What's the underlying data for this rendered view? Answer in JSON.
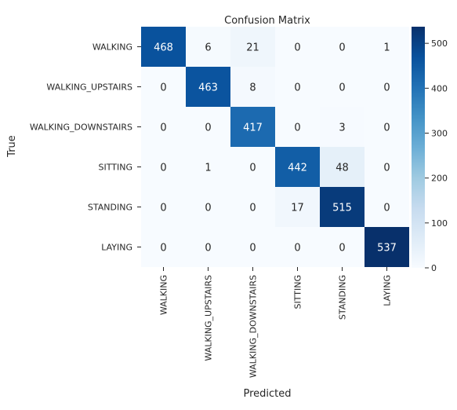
{
  "chart_data": {
    "type": "heatmap",
    "title": "Confusion Matrix",
    "xlabel": "Predicted",
    "ylabel": "True",
    "row_labels": [
      "WALKING",
      "WALKING_UPSTAIRS",
      "WALKING_DOWNSTAIRS",
      "SITTING",
      "STANDING",
      "LAYING"
    ],
    "col_labels": [
      "WALKING",
      "WALKING_UPSTAIRS",
      "WALKING_DOWNSTAIRS",
      "SITTING",
      "STANDING",
      "LAYING"
    ],
    "values": [
      [
        468,
        6,
        21,
        0,
        0,
        1
      ],
      [
        0,
        463,
        8,
        0,
        0,
        0
      ],
      [
        0,
        0,
        417,
        0,
        3,
        0
      ],
      [
        0,
        1,
        0,
        442,
        48,
        0
      ],
      [
        0,
        0,
        0,
        17,
        515,
        0
      ],
      [
        0,
        0,
        0,
        0,
        0,
        537
      ]
    ],
    "colormap": "Blues",
    "colorbar": {
      "min": 0,
      "max": 537,
      "ticks": [
        0,
        100,
        200,
        300,
        400,
        500
      ],
      "low_color": "#f7fbff",
      "high_color": "#08306b"
    },
    "grid": false,
    "annotations": true
  }
}
